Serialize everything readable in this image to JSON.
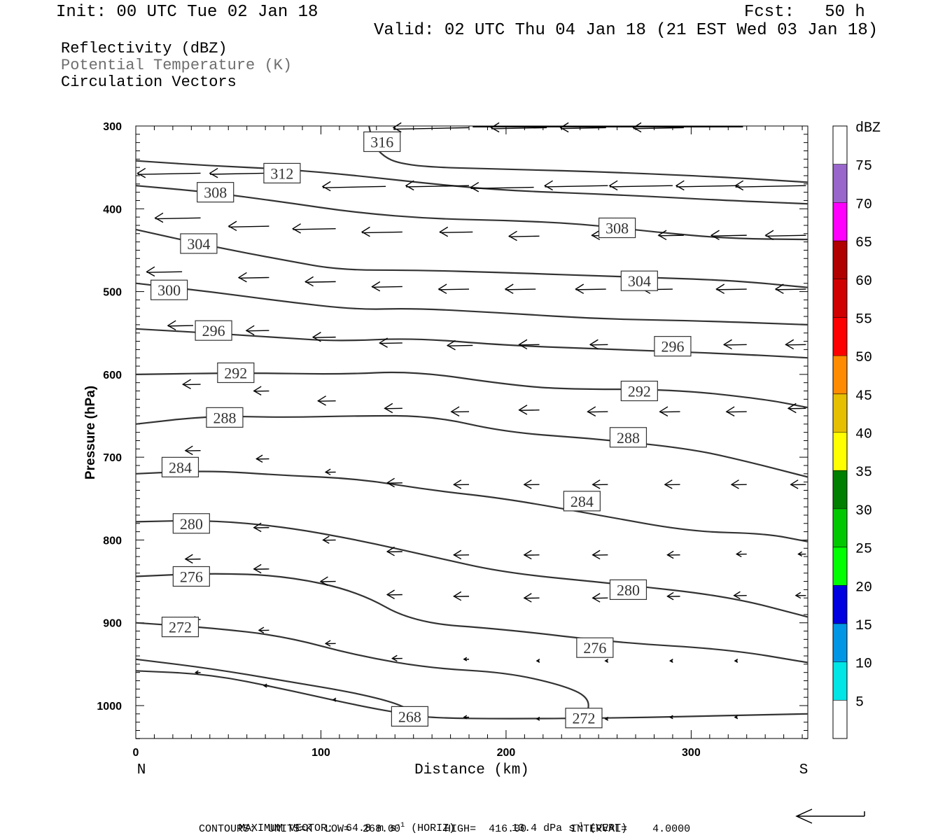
{
  "header": {
    "init": "Init: 00 UTC Tue 02 Jan 18",
    "fcst": "Fcst:   50 h",
    "valid": "Valid: 02 UTC Thu 04 Jan 18 (21 EST Wed 03 Jan 18)",
    "fields": [
      "Reflectivity (dBZ)",
      "Potential Temperature (K)",
      "Circulation Vectors"
    ]
  },
  "colors": {
    "contour": "#333333",
    "field2_text": "#6e6e6e"
  },
  "chart_data": {
    "type": "cross-section",
    "xlabel": "Distance (km)",
    "ylabel": "Pressure (hPa)",
    "xlim": [
      0,
      363
    ],
    "ylim": [
      1040,
      300
    ],
    "x_ticks": [
      0,
      100,
      200,
      300
    ],
    "y_ticks": [
      300,
      400,
      500,
      600,
      700,
      800,
      900,
      1000
    ],
    "x_end_labels": {
      "left": "N",
      "right": "S"
    },
    "colorbar": {
      "unit": "dBZ",
      "levels": [
        5,
        10,
        15,
        20,
        25,
        30,
        35,
        40,
        45,
        50,
        55,
        60,
        65,
        70,
        75
      ],
      "colors": [
        "#ffffff",
        "#00e5e5",
        "#0096e6",
        "#0000e0",
        "#00ff00",
        "#00c800",
        "#008000",
        "#ffff00",
        "#e6c000",
        "#ff8c00",
        "#ff0000",
        "#d00000",
        "#b00000",
        "#ff00ff",
        "#9966cc",
        "#ffffff"
      ]
    },
    "contours": [
      {
        "label": "316",
        "points": [
          [
            126,
            300
          ],
          [
            128,
            322
          ],
          [
            134,
            337
          ],
          [
            142,
            345
          ],
          [
            160,
            350
          ],
          [
            200,
            352
          ],
          [
            260,
            356
          ],
          [
            320,
            362
          ],
          [
            363,
            368
          ]
        ],
        "label_at": [
          133,
          319
        ]
      },
      {
        "label": "312",
        "points": [
          [
            0,
            342
          ],
          [
            40,
            348
          ],
          [
            80,
            352
          ],
          [
            120,
            360
          ],
          [
            160,
            370
          ],
          [
            200,
            378
          ],
          [
            260,
            383
          ],
          [
            320,
            390
          ],
          [
            363,
            394
          ]
        ],
        "label_at": [
          79,
          357
        ]
      },
      {
        "label": "308",
        "points": [
          [
            0,
            372
          ],
          [
            40,
            380
          ],
          [
            80,
            392
          ],
          [
            120,
            405
          ],
          [
            160,
            412
          ],
          [
            200,
            414
          ],
          [
            240,
            418
          ],
          [
            280,
            428
          ],
          [
            320,
            436
          ],
          [
            363,
            437
          ]
        ],
        "label_at": [
          43,
          380
        ]
      },
      {
        "label": "304",
        "points": [
          [
            0,
            425
          ],
          [
            40,
            445
          ],
          [
            80,
            462
          ],
          [
            110,
            474
          ],
          [
            150,
            474
          ],
          [
            200,
            477
          ],
          [
            260,
            482
          ],
          [
            320,
            486
          ],
          [
            363,
            495
          ]
        ],
        "label_at": [
          34,
          442
        ]
      },
      {
        "label": "300",
        "points": [
          [
            0,
            490
          ],
          [
            40,
            500
          ],
          [
            80,
            512
          ],
          [
            120,
            522
          ],
          [
            150,
            520
          ],
          [
            200,
            526
          ],
          [
            250,
            533
          ],
          [
            300,
            535
          ],
          [
            363,
            540
          ]
        ],
        "label_at": [
          18,
          498
        ]
      },
      {
        "label": "296",
        "points": [
          [
            0,
            545
          ],
          [
            40,
            550
          ],
          [
            80,
            556
          ],
          [
            110,
            560
          ],
          [
            150,
            556
          ],
          [
            200,
            565
          ],
          [
            260,
            570
          ],
          [
            320,
            575
          ],
          [
            363,
            580
          ]
        ],
        "label_at": [
          42,
          547
        ]
      },
      {
        "label": "292",
        "points": [
          [
            0,
            600
          ],
          [
            60,
            598
          ],
          [
            110,
            600
          ],
          [
            150,
            596
          ],
          [
            200,
            612
          ],
          [
            230,
            618
          ],
          [
            290,
            618
          ],
          [
            340,
            630
          ],
          [
            363,
            640
          ]
        ],
        "label_at": [
          54,
          598
        ]
      },
      {
        "label": "288",
        "points": [
          [
            0,
            660
          ],
          [
            40,
            650
          ],
          [
            80,
            652
          ],
          [
            120,
            650
          ],
          [
            160,
            650
          ],
          [
            200,
            670
          ],
          [
            250,
            678
          ],
          [
            300,
            690
          ],
          [
            330,
            705
          ],
          [
            363,
            724
          ]
        ],
        "label_at": [
          48,
          652
        ]
      },
      {
        "label": "284",
        "points": [
          [
            0,
            720
          ],
          [
            40,
            716
          ],
          [
            80,
            722
          ],
          [
            120,
            726
          ],
          [
            160,
            740
          ],
          [
            200,
            750
          ],
          [
            250,
            770
          ],
          [
            300,
            790
          ],
          [
            340,
            792
          ],
          [
            363,
            802
          ]
        ],
        "label_at": [
          24,
          712
        ]
      },
      {
        "label": "280",
        "points": [
          [
            0,
            778
          ],
          [
            40,
            776
          ],
          [
            80,
            784
          ],
          [
            120,
            800
          ],
          [
            160,
            820
          ],
          [
            200,
            840
          ],
          [
            260,
            853
          ],
          [
            320,
            868
          ],
          [
            363,
            893
          ]
        ],
        "label_at": [
          30,
          780
        ]
      },
      {
        "label": "276",
        "points": [
          [
            0,
            844
          ],
          [
            40,
            840
          ],
          [
            80,
            843
          ],
          [
            120,
            862
          ],
          [
            150,
            900
          ],
          [
            200,
            908
          ],
          [
            260,
            924
          ],
          [
            320,
            932
          ],
          [
            363,
            948
          ]
        ],
        "label_at": [
          30,
          844
        ]
      },
      {
        "label": "272",
        "points": [
          [
            0,
            900
          ],
          [
            40,
            906
          ],
          [
            80,
            916
          ],
          [
            120,
            940
          ],
          [
            160,
            955
          ],
          [
            200,
            960
          ],
          [
            230,
            975
          ],
          [
            245,
            990
          ],
          [
            244,
            1012
          ]
        ],
        "label_at": [
          24,
          905
        ]
      },
      {
        "label": "268",
        "points": [
          [
            0,
            944
          ],
          [
            40,
            955
          ],
          [
            80,
            970
          ],
          [
            120,
            985
          ],
          [
            145,
            1000
          ],
          [
            150,
            1012
          ]
        ],
        "label_at": [
          148,
          1013
        ]
      },
      {
        "label": "",
        "points": [
          [
            0,
            958
          ],
          [
            40,
            962
          ],
          [
            80,
            980
          ],
          [
            120,
            1000
          ],
          [
            145,
            1010
          ],
          [
            160,
            1015
          ],
          [
            200,
            1016
          ],
          [
            260,
            1015
          ],
          [
            320,
            1012
          ],
          [
            363,
            1010
          ]
        ],
        "label_at": null
      }
    ],
    "extra_labels": [
      {
        "label": "308",
        "at": [
          260,
          423
        ]
      },
      {
        "label": "304",
        "at": [
          272,
          487
        ]
      },
      {
        "label": "296",
        "at": [
          290,
          566
        ]
      },
      {
        "label": "292",
        "at": [
          272,
          620
        ]
      },
      {
        "label": "288",
        "at": [
          266,
          676
        ]
      },
      {
        "label": "284",
        "at": [
          241,
          753
        ]
      },
      {
        "label": "280",
        "at": [
          266,
          860
        ]
      },
      {
        "label": "276",
        "at": [
          248,
          930
        ]
      },
      {
        "label": "272",
        "at": [
          242,
          1015
        ]
      }
    ],
    "vectors": [
      {
        "x": 35,
        "p": 357,
        "u": -25
      },
      {
        "x": 70,
        "p": 357,
        "u": -22
      },
      {
        "x": 135,
        "p": 373,
        "u": -25
      },
      {
        "x": 180,
        "p": 372,
        "u": -25
      },
      {
        "x": 215,
        "p": 374,
        "u": -25
      },
      {
        "x": 255,
        "p": 372,
        "u": -25
      },
      {
        "x": 290,
        "p": 372,
        "u": -25
      },
      {
        "x": 326,
        "p": 372,
        "u": -25
      },
      {
        "x": 362,
        "p": 372,
        "u": -28
      },
      {
        "x": 35,
        "p": 411,
        "u": -18
      },
      {
        "x": 72,
        "p": 421,
        "u": -16
      },
      {
        "x": 108,
        "p": 424,
        "u": -17
      },
      {
        "x": 144,
        "p": 428,
        "u": -16
      },
      {
        "x": 182,
        "p": 428,
        "u": -13
      },
      {
        "x": 218,
        "p": 433,
        "u": -12
      },
      {
        "x": 260,
        "p": 432,
        "u": -10
      },
      {
        "x": 296,
        "p": 432,
        "u": -10
      },
      {
        "x": 330,
        "p": 432,
        "u": -14
      },
      {
        "x": 362,
        "p": 432,
        "u": -16
      },
      {
        "x": 25,
        "p": 476,
        "u": -14
      },
      {
        "x": 72,
        "p": 483,
        "u": -12
      },
      {
        "x": 108,
        "p": 488,
        "u": -12
      },
      {
        "x": 144,
        "p": 494,
        "u": -12
      },
      {
        "x": 180,
        "p": 497,
        "u": -12
      },
      {
        "x": 216,
        "p": 497,
        "u": -12
      },
      {
        "x": 254,
        "p": 497,
        "u": -12
      },
      {
        "x": 290,
        "p": 497,
        "u": -12
      },
      {
        "x": 330,
        "p": 497,
        "u": -12
      },
      {
        "x": 362,
        "p": 497,
        "u": -12
      },
      {
        "x": 31,
        "p": 541,
        "u": -10
      },
      {
        "x": 72,
        "p": 547,
        "u": -9
      },
      {
        "x": 108,
        "p": 555,
        "u": -9
      },
      {
        "x": 144,
        "p": 562,
        "u": -9
      },
      {
        "x": 182,
        "p": 565,
        "u": -10
      },
      {
        "x": 218,
        "p": 564,
        "u": -8
      },
      {
        "x": 255,
        "p": 564,
        "u": -7
      },
      {
        "x": 293,
        "p": 564,
        "u": -8
      },
      {
        "x": 330,
        "p": 564,
        "u": -9
      },
      {
        "x": 362,
        "p": 564,
        "u": -8
      },
      {
        "x": 35,
        "p": 612,
        "u": -7
      },
      {
        "x": 72,
        "p": 620,
        "u": -6
      },
      {
        "x": 108,
        "p": 632,
        "u": -7
      },
      {
        "x": 144,
        "p": 641,
        "u": -7
      },
      {
        "x": 180,
        "p": 645,
        "u": -7
      },
      {
        "x": 218,
        "p": 643,
        "u": -8
      },
      {
        "x": 255,
        "p": 645,
        "u": -8
      },
      {
        "x": 294,
        "p": 645,
        "u": -8
      },
      {
        "x": 330,
        "p": 645,
        "u": -8
      },
      {
        "x": 362,
        "p": 641,
        "u": -7
      },
      {
        "x": 35,
        "p": 692,
        "u": -6
      },
      {
        "x": 72,
        "p": 702,
        "u": -5
      },
      {
        "x": 108,
        "p": 718,
        "u": -4
      },
      {
        "x": 144,
        "p": 731,
        "u": -6
      },
      {
        "x": 180,
        "p": 733,
        "u": -6
      },
      {
        "x": 218,
        "p": 733,
        "u": -6
      },
      {
        "x": 255,
        "p": 733,
        "u": -6
      },
      {
        "x": 294,
        "p": 733,
        "u": -6
      },
      {
        "x": 330,
        "p": 733,
        "u": -6
      },
      {
        "x": 362,
        "p": 733,
        "u": -6
      },
      {
        "x": 35,
        "p": 775,
        "u": -7
      },
      {
        "x": 72,
        "p": 785,
        "u": -6
      },
      {
        "x": 108,
        "p": 800,
        "u": -5
      },
      {
        "x": 144,
        "p": 814,
        "u": -6
      },
      {
        "x": 180,
        "p": 818,
        "u": -6
      },
      {
        "x": 218,
        "p": 818,
        "u": -6
      },
      {
        "x": 255,
        "p": 818,
        "u": -6
      },
      {
        "x": 294,
        "p": 818,
        "u": -5
      },
      {
        "x": 330,
        "p": 817,
        "u": -4
      },
      {
        "x": 362,
        "p": 817,
        "u": -3
      },
      {
        "x": 35,
        "p": 823,
        "u": -6
      },
      {
        "x": 72,
        "p": 835,
        "u": -6
      },
      {
        "x": 108,
        "p": 850,
        "u": -6
      },
      {
        "x": 144,
        "p": 866,
        "u": -6
      },
      {
        "x": 180,
        "p": 868,
        "u": -6
      },
      {
        "x": 218,
        "p": 870,
        "u": -6
      },
      {
        "x": 255,
        "p": 870,
        "u": -6
      },
      {
        "x": 294,
        "p": 868,
        "u": -5
      },
      {
        "x": 330,
        "p": 867,
        "u": -5
      },
      {
        "x": 362,
        "p": 867,
        "u": -4
      },
      {
        "x": 35,
        "p": 896,
        "u": -4
      },
      {
        "x": 72,
        "p": 909,
        "u": -4
      },
      {
        "x": 108,
        "p": 925,
        "u": -4
      },
      {
        "x": 144,
        "p": 943,
        "u": -4
      },
      {
        "x": 180,
        "p": 944,
        "u": -2
      },
      {
        "x": 218,
        "p": 946,
        "u": -1
      },
      {
        "x": 255,
        "p": 946,
        "u": -1
      },
      {
        "x": 290,
        "p": 946,
        "u": -1
      },
      {
        "x": 325,
        "p": 946,
        "u": -1
      },
      {
        "x": 35,
        "p": 960,
        "u": -2
      },
      {
        "x": 72,
        "p": 976,
        "u": -2
      },
      {
        "x": 108,
        "p": 993,
        "u": -1
      },
      {
        "x": 180,
        "p": 1014,
        "u": -2
      },
      {
        "x": 218,
        "p": 1016,
        "u": -1
      },
      {
        "x": 255,
        "p": 1016,
        "u": -1
      },
      {
        "x": 290,
        "p": 1014,
        "u": -1
      },
      {
        "x": 325,
        "p": 1014,
        "u": -1
      }
    ],
    "top_arrows": [
      {
        "x": 180,
        "p": 302,
        "u": -30
      },
      {
        "x": 222,
        "p": 302,
        "u": -22
      },
      {
        "x": 254,
        "p": 302,
        "u": -18
      },
      {
        "x": 296,
        "p": 302,
        "u": -20
      }
    ]
  },
  "footer": {
    "max_vector_label": "MAXIMUM VECTOR:",
    "max_horiz": "64.8 m s",
    "max_horiz_exp": "-1",
    "max_horiz_unit": "(HORIZ)",
    "max_vert": "13.4 dPa s",
    "max_vert_exp": "-1",
    "max_vert_unit": "(VERT)",
    "contours": "CONTOURS:  UNITS=K  LOW=  268.00       HIGH=  416.00       INTERVAL=    4.0000"
  }
}
